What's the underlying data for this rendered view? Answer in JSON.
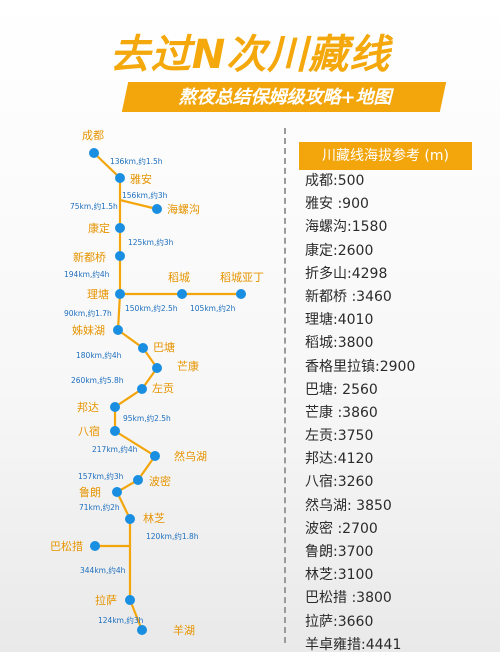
{
  "title": "去过N次川藏线",
  "subtitle": "熬夜总结保姆级攻略+地图",
  "colors": {
    "accent": "#f2a60c",
    "node": "#1a8ee0",
    "distance_text": "#1d6fbf"
  },
  "route": {
    "stations": [
      "成都",
      "雅安",
      "海螺沟",
      "康定",
      "新都桥",
      "理塘",
      "稻城",
      "稻城亚丁",
      "姊妹湖",
      "巴塘",
      "芒康",
      "左贡",
      "邦达",
      "八宿",
      "然乌湖",
      "波密",
      "鲁朗",
      "林芝",
      "巴松措",
      "拉萨",
      "羊湖"
    ],
    "distances": [
      "136km,约1.5h",
      "156km,约3h",
      "75km,约1.5h",
      "125km,约3h",
      "194km,约4h",
      "150km,约2.5h",
      "105km,约2h",
      "90km,约1.7h",
      "180km,约4h",
      "260km,约5.8h",
      "95km,约2.5h",
      "217km,约4h",
      "157km,约3h",
      "71km,约2h",
      "120km,约1.8h",
      "344km,约4h",
      "124km,约3h"
    ]
  },
  "altitude": {
    "title": "川藏线海拔参考 (m)",
    "items": [
      "成都:500",
      "雅安 :900",
      "海螺沟:1580",
      "康定:2600",
      "折多山:4298",
      "新都桥 :3460",
      "理塘:4010",
      "稻城:3800",
      "香格里拉镇:2900",
      "巴塘: 2560",
      "芒康 :3860",
      "左贡:3750",
      "邦达:4120",
      "八宿:3260",
      "然乌湖: 3850",
      "波密 :2700",
      "鲁朗:3700",
      "林芝:3100",
      "巴松措 :3800",
      "拉萨:3660",
      "羊卓雍措:4441"
    ]
  }
}
